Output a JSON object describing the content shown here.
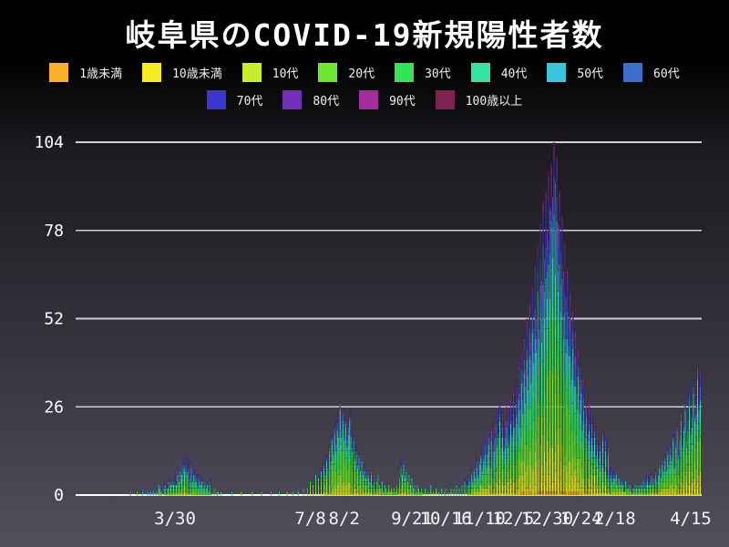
{
  "title": "岐阜県のCOVID-19新規陽性者数",
  "chart_data": {
    "type": "bar",
    "stacked": true,
    "title": "岐阜県のCOVID-19新規陽性者数",
    "ylabel": "",
    "xlabel": "",
    "ylim": [
      0,
      104
    ],
    "grid": "horizontal",
    "legend_position": "top",
    "y_ticks": [
      0,
      26,
      52,
      78,
      104
    ],
    "x_ticks": [
      {
        "label": "3/30",
        "day": 33
      },
      {
        "label": "7/8",
        "day": 133
      },
      {
        "label": "8/2",
        "day": 158
      },
      {
        "label": "9/21",
        "day": 208
      },
      {
        "label": "10/16",
        "day": 233
      },
      {
        "label": "11/10",
        "day": 258
      },
      {
        "label": "12/5",
        "day": 283
      },
      {
        "label": "12/30",
        "day": 308
      },
      {
        "label": "1/24",
        "day": 333
      },
      {
        "label": "2/18",
        "day": 358
      },
      {
        "label": "4/15",
        "day": 414
      }
    ],
    "age_groups": [
      {
        "label": "1歳未満",
        "color": "#F9B02C"
      },
      {
        "label": "10歳未満",
        "color": "#F5EC27"
      },
      {
        "label": "10代",
        "color": "#C8ED2F"
      },
      {
        "label": "20代",
        "color": "#6CE832"
      },
      {
        "label": "30代",
        "color": "#35E356"
      },
      {
        "label": "40代",
        "color": "#36E3A1"
      },
      {
        "label": "50代",
        "color": "#3BC4DB"
      },
      {
        "label": "60代",
        "color": "#3C6ED0"
      },
      {
        "label": "70代",
        "color": "#3937CE"
      },
      {
        "label": "80代",
        "color": "#7030B8"
      },
      {
        "label": "90代",
        "color": "#A52DA0"
      },
      {
        "label": "100歳以上",
        "color": "#7E2351"
      }
    ],
    "stack_profiles": {
      "w1": [
        0.0,
        0.02,
        0.05,
        0.17,
        0.14,
        0.15,
        0.15,
        0.12,
        0.1,
        0.06,
        0.03,
        0.01
      ],
      "w2": [
        0.01,
        0.04,
        0.1,
        0.28,
        0.18,
        0.13,
        0.1,
        0.07,
        0.05,
        0.02,
        0.01,
        0.01
      ],
      "w3": [
        0.01,
        0.05,
        0.1,
        0.2,
        0.14,
        0.13,
        0.12,
        0.1,
        0.07,
        0.05,
        0.02,
        0.01
      ],
      "w4": [
        0.01,
        0.06,
        0.12,
        0.24,
        0.16,
        0.14,
        0.11,
        0.08,
        0.04,
        0.02,
        0.01,
        0.01
      ]
    },
    "eras": [
      {
        "until": 130,
        "profile": "w1"
      },
      {
        "until": 230,
        "profile": "w2"
      },
      {
        "until": 390,
        "profile": "w3"
      },
      {
        "until": 999,
        "profile": "w4"
      }
    ],
    "daily_totals": [
      1,
      0,
      0,
      0,
      0,
      1,
      0,
      0,
      0,
      2,
      0,
      0,
      0,
      1,
      0,
      1,
      0,
      2,
      0,
      1,
      0,
      3,
      2,
      2,
      0,
      4,
      3,
      3,
      2,
      5,
      4,
      4,
      3,
      6,
      4,
      8,
      5,
      9,
      7,
      11,
      8,
      12,
      9,
      11,
      7,
      10,
      6,
      8,
      5,
      7,
      4,
      6,
      3,
      5,
      2,
      4,
      2,
      3,
      1,
      5,
      1,
      0,
      2,
      0,
      1,
      1,
      0,
      1,
      0,
      0,
      0,
      0,
      0,
      0,
      0,
      1,
      0,
      0,
      0,
      0,
      0,
      0,
      1,
      0,
      0,
      0,
      0,
      0,
      0,
      0,
      1,
      0,
      0,
      0,
      0,
      0,
      0,
      1,
      0,
      0,
      0,
      0,
      0,
      0,
      1,
      0,
      0,
      0,
      0,
      0,
      1,
      0,
      0,
      0,
      0,
      0,
      1,
      0,
      0,
      0,
      1,
      0,
      0,
      0,
      2,
      0,
      0,
      0,
      3,
      0,
      0,
      2,
      0,
      4,
      0,
      3,
      0,
      6,
      0,
      5,
      0,
      8,
      0,
      10,
      7,
      12,
      9,
      15,
      11,
      18,
      14,
      21,
      16,
      24,
      19,
      27,
      22,
      25,
      20,
      23,
      17,
      21,
      25,
      19,
      15,
      18,
      12,
      15,
      10,
      13,
      8,
      11,
      7,
      9,
      5,
      7,
      6,
      4,
      7,
      3,
      5,
      2,
      4,
      6,
      3,
      2,
      4,
      1,
      3,
      2,
      1,
      3,
      1,
      2,
      1,
      2,
      1,
      3,
      2,
      5,
      10,
      7,
      11,
      6,
      8,
      4,
      6,
      3,
      5,
      2,
      4,
      1,
      3,
      2,
      1,
      2,
      1,
      0,
      2,
      0,
      1,
      0,
      3,
      0,
      1,
      0,
      2,
      0,
      1,
      0,
      2,
      0,
      1,
      2,
      0,
      1,
      0,
      3,
      0,
      2,
      0,
      4,
      0,
      2,
      0,
      3,
      0,
      5,
      0,
      4,
      6,
      4,
      8,
      5,
      9,
      7,
      12,
      8,
      10,
      14,
      9,
      13,
      17,
      11,
      15,
      19,
      13,
      22,
      16,
      20,
      25,
      18,
      23,
      27,
      20,
      24,
      17,
      21,
      26,
      19,
      23,
      28,
      22,
      30,
      24,
      33,
      27,
      38,
      30,
      42,
      34,
      46,
      37,
      52,
      41,
      57,
      45,
      62,
      49,
      68,
      53,
      74,
      58,
      80,
      63,
      87,
      70,
      90,
      78,
      95,
      85,
      98,
      88,
      104,
      93,
      100,
      80,
      90,
      72,
      83,
      66,
      75,
      58,
      67,
      52,
      60,
      46,
      54,
      41,
      48,
      36,
      43,
      32,
      38,
      28,
      34,
      25,
      30,
      22,
      27,
      19,
      24,
      17,
      21,
      15,
      18,
      13,
      16,
      11,
      20,
      9,
      18,
      8,
      16,
      7,
      9,
      6,
      8,
      5,
      7,
      4,
      6,
      3,
      5,
      4,
      2,
      4,
      3,
      2,
      3,
      1,
      3,
      2,
      4,
      2,
      3,
      2,
      4,
      3,
      5,
      2,
      4,
      6,
      3,
      5,
      7,
      4,
      6,
      8,
      5,
      7,
      9,
      6,
      10,
      7,
      12,
      8,
      14,
      10,
      16,
      12,
      19,
      9,
      15,
      22,
      13,
      18,
      25,
      16,
      21,
      28,
      17,
      23,
      31,
      20,
      26,
      34,
      24,
      30,
      39,
      29,
      36
    ]
  }
}
